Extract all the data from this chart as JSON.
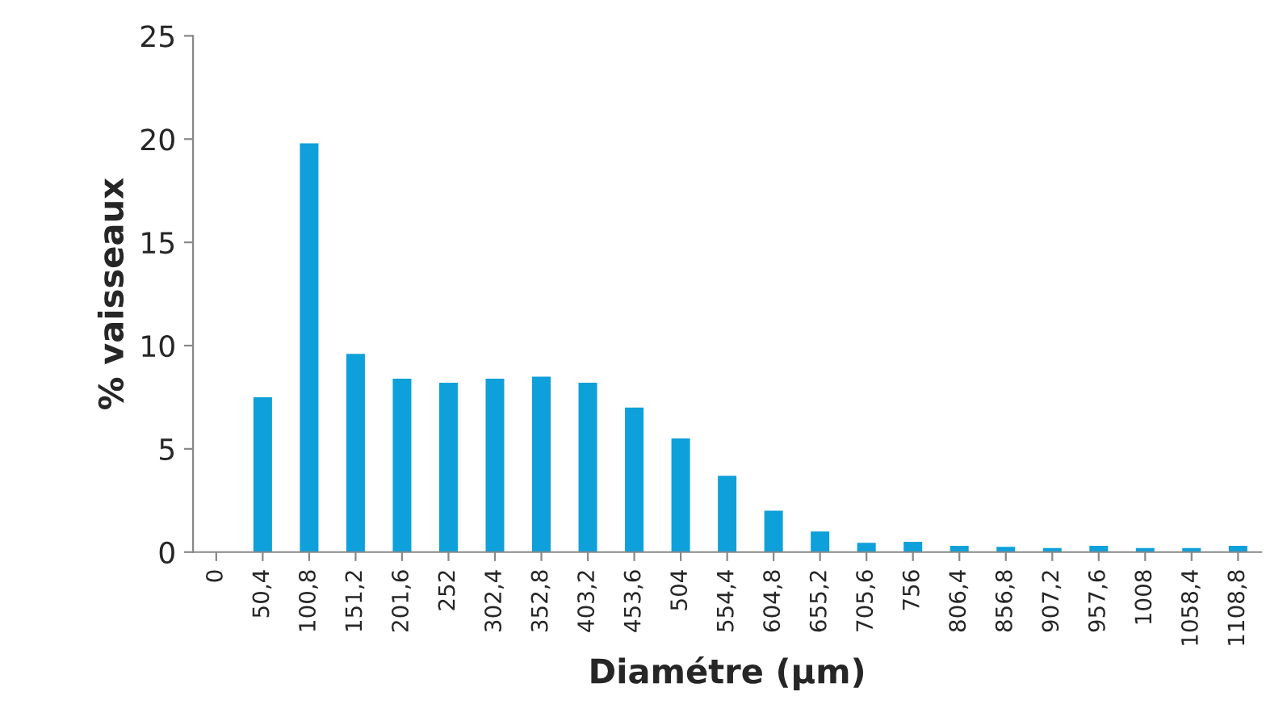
{
  "chart_data": {
    "type": "bar",
    "xlabel": "Diamétre (µm)",
    "ylabel": "% vaisseaux",
    "categories": [
      "0",
      "50,4",
      "100,8",
      "151,2",
      "201,6",
      "252",
      "302,4",
      "352,8",
      "403,2",
      "453,6",
      "504",
      "554,4",
      "604,8",
      "655,2",
      "705,6",
      "756",
      "806,4",
      "856,8",
      "907,2",
      "957,6",
      "1008",
      "1058,4",
      "1108,8"
    ],
    "values": [
      0,
      7.5,
      19.8,
      9.6,
      8.4,
      8.2,
      8.4,
      8.5,
      8.2,
      7.0,
      5.5,
      3.7,
      2.0,
      1.0,
      0.45,
      0.5,
      0.3,
      0.25,
      0.2,
      0.3,
      0.2,
      0.2,
      0.3
    ],
    "color": "#0ea0da",
    "ylim": [
      0,
      25
    ],
    "yticks": [
      0,
      5,
      10,
      15,
      20,
      25
    ],
    "grid": false,
    "legend": false
  }
}
